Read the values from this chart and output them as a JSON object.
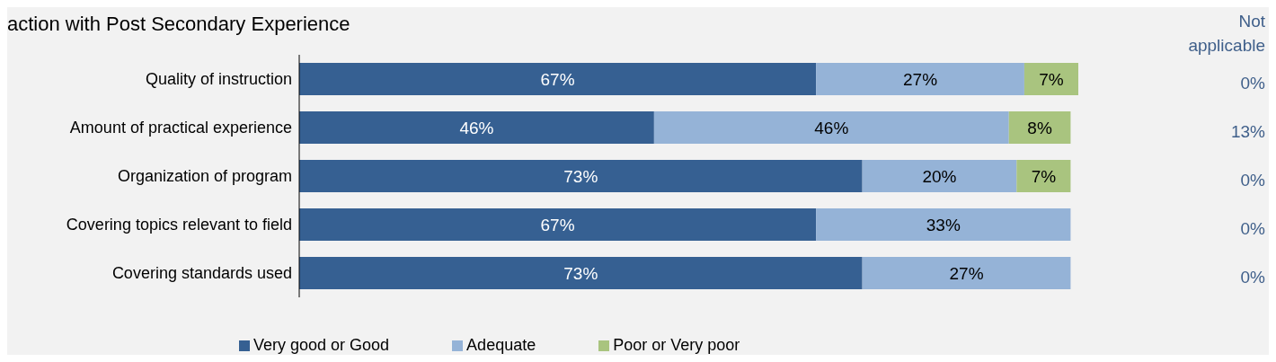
{
  "chart_data": {
    "type": "bar",
    "orientation": "horizontal",
    "stacked": true,
    "legend": "bottom",
    "grid": false,
    "title": "action with Post Secondary Experience",
    "categories": [
      "Quality of instruction",
      "Amount of practical experience",
      "Organization of program",
      "Covering topics relevant to field",
      "Covering standards used"
    ],
    "series": [
      {
        "name": "Very good or Good",
        "color": "#366092",
        "values": [
          67,
          46,
          73,
          67,
          73
        ],
        "value_labels": [
          "67%",
          "46%",
          "73%",
          "67%",
          "73%"
        ]
      },
      {
        "name": "Adequate",
        "color": "#95b3d7",
        "values": [
          27,
          46,
          20,
          33,
          27
        ],
        "value_labels": [
          "27%",
          "46%",
          "20%",
          "33%",
          "27%"
        ]
      },
      {
        "name": "Poor or Very poor",
        "color": "#a9c47f",
        "values": [
          7,
          8,
          7,
          null,
          null
        ],
        "value_labels": [
          "7%",
          "8%",
          "7%",
          null,
          null
        ]
      }
    ],
    "annotations": [
      "Not applicable",
      "0%",
      "13%",
      "0%",
      "0%",
      "0%"
    ]
  }
}
